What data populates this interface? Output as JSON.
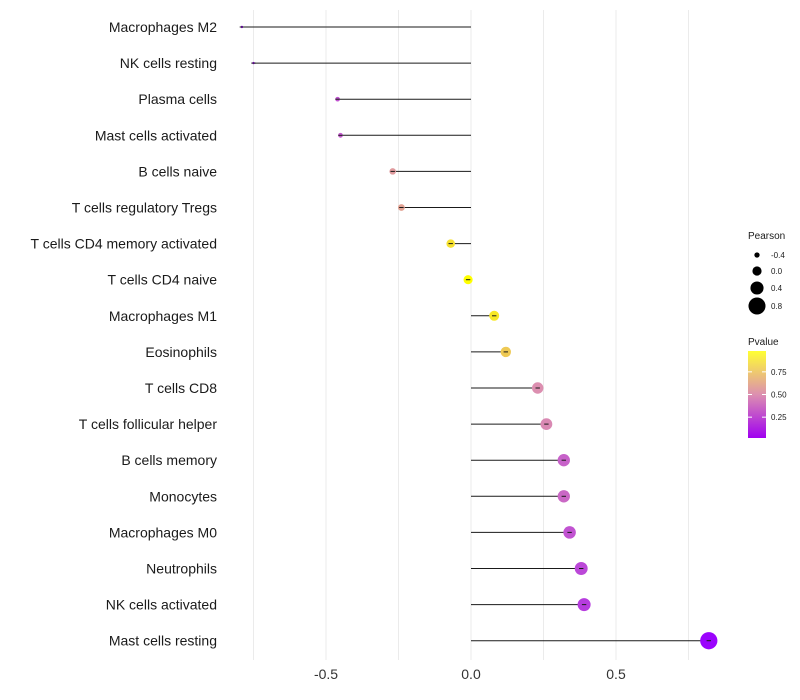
{
  "chart_data": {
    "type": "lollipop",
    "title": "",
    "xlabel": "",
    "ylabel": "",
    "xlim": [
      -0.88,
      0.88
    ],
    "x_ticks": [
      -0.5,
      0.0,
      0.5
    ],
    "x_tick_labels": [
      "-0.5",
      "0.0",
      "0.5"
    ],
    "grid": true,
    "categories": [
      "Macrophages M2",
      "NK cells resting",
      "Plasma cells",
      "Mast cells activated",
      "B cells naive",
      "T cells regulatory  Tregs ",
      "T cells CD4 memory activated",
      "T cells CD4 naive",
      "Macrophages M1",
      "Eosinophils",
      "T cells CD8",
      "T cells follicular helper",
      "B cells memory",
      "Monocytes",
      "Macrophages M0",
      "Neutrophils",
      "NK cells activated",
      "Mast cells resting"
    ],
    "pearson": [
      -0.79,
      -0.75,
      -0.46,
      -0.45,
      -0.27,
      -0.24,
      -0.07,
      -0.01,
      0.08,
      0.12,
      0.23,
      0.26,
      0.32,
      0.32,
      0.34,
      0.38,
      0.39,
      0.82
    ],
    "pvalue": [
      0.02,
      0.05,
      0.3,
      0.32,
      0.55,
      0.58,
      0.85,
      0.98,
      0.88,
      0.75,
      0.5,
      0.48,
      0.35,
      0.37,
      0.3,
      0.26,
      0.22,
      0.03
    ],
    "legend": {
      "size_title": "Pearson",
      "size_values": [
        -0.4,
        0.0,
        0.4,
        0.8
      ],
      "size_labels": [
        "-0.4",
        "0.0",
        "0.4",
        "0.8"
      ],
      "color_title": "Pvalue",
      "color_ticks": [
        0.25,
        0.5,
        0.75
      ],
      "color_labels": [
        "0.25",
        "0.50",
        "0.75"
      ],
      "color_range": [
        0.02,
        0.98
      ],
      "placement": "right"
    },
    "colors": {
      "low": "#9a00ff",
      "mid": "#dc8fb0",
      "high": "#ffff00",
      "segment": "#1a1a1a",
      "grid": "#ebebeb"
    }
  }
}
